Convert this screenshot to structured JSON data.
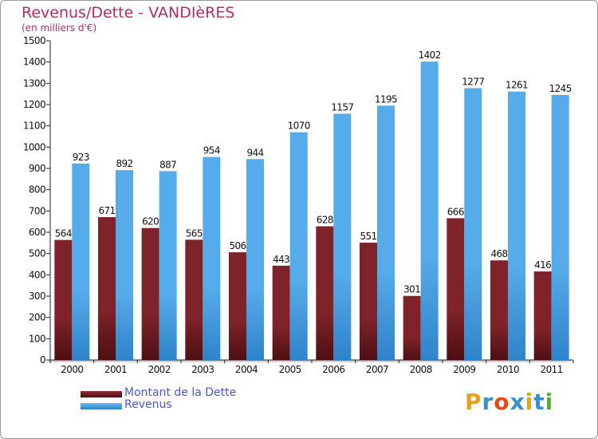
{
  "chart_data": {
    "type": "bar",
    "title": "Revenus/Dette - VANDIèRES",
    "subtitle": "(en milliers d'€)",
    "categories": [
      "2000",
      "2001",
      "2002",
      "2003",
      "2004",
      "2005",
      "2006",
      "2007",
      "2008",
      "2009",
      "2010",
      "2011"
    ],
    "series": [
      {
        "name": "Montant de la Dette",
        "color": "#7a1f25",
        "values": [
          564,
          671,
          620,
          565,
          506,
          443,
          628,
          551,
          301,
          666,
          468,
          416
        ]
      },
      {
        "name": "Revenus",
        "color": "#4b9fe0",
        "values": [
          923,
          892,
          887,
          954,
          944,
          1070,
          1157,
          1195,
          1402,
          1277,
          1261,
          1245
        ]
      }
    ],
    "ylim": [
      0,
      1500
    ],
    "y_ticks": [
      0,
      100,
      200,
      300,
      400,
      500,
      600,
      700,
      800,
      900,
      1000,
      1100,
      1200,
      1300,
      1400,
      1500
    ],
    "xlabel": "",
    "ylabel": "",
    "grid": false,
    "legend_position": "bottom-left"
  },
  "brand": {
    "text": "Proxiti",
    "colors": [
      "#e8a020",
      "#3a8fd0",
      "#e04a1a",
      "#3a8fd0",
      "#e8a020",
      "#3a8fd0",
      "#5cb030"
    ]
  }
}
